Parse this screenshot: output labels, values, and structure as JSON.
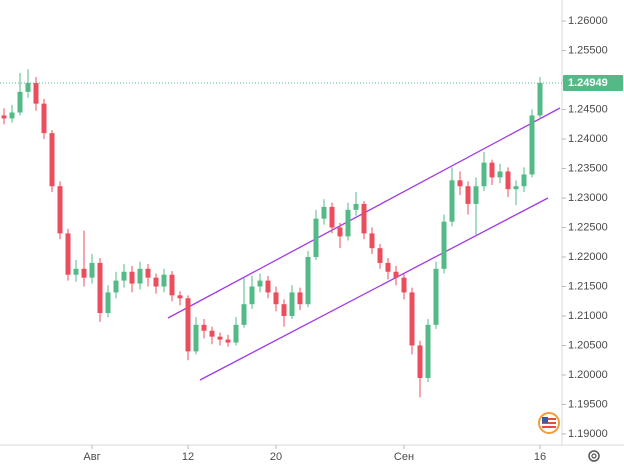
{
  "chart_data": {
    "type": "candlestick",
    "open": [
      1.244,
      1.2435,
      1.2445,
      1.248,
      1.2495,
      1.246,
      1.241,
      1.232,
      1.224,
      1.217,
      1.218,
      1.2165,
      1.219,
      1.2105,
      1.214,
      1.216,
      1.2175,
      1.2155,
      1.218,
      1.2165,
      1.215,
      1.217,
      1.2135,
      1.213,
      1.204,
      1.2085,
      1.2075,
      1.2065,
      1.206,
      1.2055,
      1.2085,
      1.212,
      1.215,
      1.216,
      1.214,
      1.212,
      1.21,
      1.214,
      1.212,
      1.22,
      1.2265,
      1.2285,
      1.225,
      1.2235,
      1.228,
      1.229,
      1.224,
      1.2215,
      1.219,
      1.2175,
      1.2165,
      1.214,
      1.205,
      1.1995,
      1.2085,
      1.218,
      1.226,
      1.233,
      1.232,
      1.229,
      1.232,
      1.236,
      1.2335,
      1.2345,
      1.2315,
      1.232,
      1.234,
      1.244
    ],
    "high": [
      1.2452,
      1.2458,
      1.2512,
      1.2518,
      1.2505,
      1.2468,
      1.2415,
      1.2328,
      1.2248,
      1.2195,
      1.2245,
      1.2205,
      1.2198,
      1.2152,
      1.2175,
      1.2188,
      1.2185,
      1.2192,
      1.2188,
      1.2172,
      1.218,
      1.2176,
      1.2142,
      1.2135,
      1.2098,
      1.2095,
      1.2082,
      1.2072,
      1.2068,
      1.2098,
      1.2165,
      1.2168,
      1.2172,
      1.2168,
      1.215,
      1.2128,
      1.2152,
      1.2148,
      1.221,
      1.228,
      1.2298,
      1.2292,
      1.2258,
      1.2292,
      1.231,
      1.2295,
      1.225,
      1.2222,
      1.2198,
      1.2185,
      1.2172,
      1.2148,
      1.2058,
      1.2095,
      1.2192,
      1.2272,
      1.2352,
      1.2345,
      1.2328,
      1.2335,
      1.2378,
      1.2365,
      1.2358,
      1.2352,
      1.233,
      1.2352,
      1.245,
      1.2505
    ],
    "low": [
      1.2425,
      1.2428,
      1.244,
      1.247,
      1.2448,
      1.24,
      1.231,
      1.223,
      1.216,
      1.2158,
      1.215,
      1.2155,
      1.209,
      1.2098,
      1.213,
      1.2148,
      1.214,
      1.2145,
      1.215,
      1.2138,
      1.214,
      1.2125,
      1.2118,
      1.2025,
      1.2035,
      1.2062,
      1.2052,
      1.205,
      1.2048,
      1.205,
      1.208,
      1.2112,
      1.214,
      1.213,
      1.2108,
      1.2082,
      1.2095,
      1.211,
      1.2115,
      1.2195,
      1.2255,
      1.224,
      1.2215,
      1.2228,
      1.227,
      1.223,
      1.2205,
      1.218,
      1.2162,
      1.2152,
      1.2128,
      1.2035,
      1.1962,
      1.1988,
      1.2078,
      1.2172,
      1.2252,
      1.2305,
      1.2272,
      1.2238,
      1.2312,
      1.2322,
      1.2325,
      1.2302,
      1.2288,
      1.231,
      1.2335,
      1.2435
    ],
    "close": [
      1.2435,
      1.2445,
      1.248,
      1.2495,
      1.246,
      1.241,
      1.232,
      1.224,
      1.217,
      1.218,
      1.2165,
      1.219,
      1.2105,
      1.214,
      1.216,
      1.2175,
      1.2155,
      1.218,
      1.2165,
      1.215,
      1.217,
      1.2135,
      1.213,
      1.204,
      1.2085,
      1.2075,
      1.2065,
      1.206,
      1.2055,
      1.2085,
      1.212,
      1.215,
      1.216,
      1.214,
      1.212,
      1.21,
      1.214,
      1.212,
      1.22,
      1.2265,
      1.2285,
      1.225,
      1.2235,
      1.228,
      1.229,
      1.224,
      1.2215,
      1.219,
      1.2175,
      1.2165,
      1.214,
      1.205,
      1.1995,
      1.2085,
      1.218,
      1.226,
      1.233,
      1.232,
      1.229,
      1.232,
      1.236,
      1.2335,
      1.2345,
      1.2315,
      1.232,
      1.234,
      1.244,
      1.24949
    ],
    "up_color": "#53b987",
    "down_color": "#eb4d5c",
    "ylim": [
      1.18813,
      1.26357
    ],
    "yticks": [
      {
        "value": 1.19,
        "label": "1.19000"
      },
      {
        "value": 1.195,
        "label": "1.19500"
      },
      {
        "value": 1.2,
        "label": "1.20000"
      },
      {
        "value": 1.205,
        "label": "1.20500"
      },
      {
        "value": 1.21,
        "label": "1.21000"
      },
      {
        "value": 1.215,
        "label": "1.21500"
      },
      {
        "value": 1.22,
        "label": "1.22000"
      },
      {
        "value": 1.225,
        "label": "1.22500"
      },
      {
        "value": 1.23,
        "label": "1.23000"
      },
      {
        "value": 1.235,
        "label": "1.23500"
      },
      {
        "value": 1.24,
        "label": "1.24000"
      },
      {
        "value": 1.245,
        "label": "1.24500"
      },
      {
        "value": 1.25,
        "label": "1.25000"
      },
      {
        "value": 1.255,
        "label": "1.25500"
      },
      {
        "value": 1.26,
        "label": "1.26000"
      }
    ],
    "xticks": [
      {
        "value": 11,
        "label": "Авг"
      },
      {
        "value": 23,
        "label": "12"
      },
      {
        "value": 34,
        "label": "20"
      },
      {
        "value": 50,
        "label": "Сен"
      },
      {
        "value": 67,
        "label": "16"
      }
    ],
    "last_price": 1.24949,
    "grid": false
  }
}
